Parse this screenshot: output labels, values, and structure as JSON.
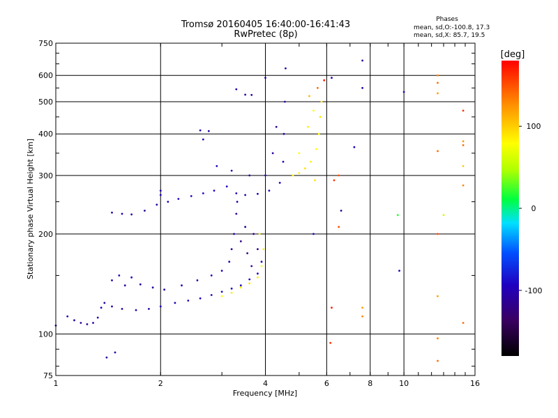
{
  "chart_data": {
    "type": "scatter",
    "title": "Tromsø 20160405 16:40:00-16:41:43",
    "subtitle": "RwPretec (8p)",
    "xlabel": "Frequency [MHz]",
    "ylabel": "Stationary phase Virtual Height [km]",
    "x_scale": "log",
    "y_scale": "log",
    "xlim": [
      1,
      16
    ],
    "ylim": [
      75,
      750
    ],
    "x_ticks": [
      1,
      2,
      4,
      6,
      8,
      10,
      16
    ],
    "x_tick_labels": [
      "1",
      "2",
      "4",
      "6",
      "8",
      "10",
      "16"
    ],
    "y_ticks": [
      75,
      100,
      200,
      300,
      400,
      500,
      600,
      750
    ],
    "y_tick_labels": [
      "75",
      "100",
      "200",
      "300",
      "400",
      "500",
      "600",
      "750"
    ],
    "grid": true,
    "phases_info": {
      "heading": "Phases",
      "line1": "mean, sd,O:-100.8, 17.3",
      "line2": "mean, sd,X:  85.7, 19.5"
    },
    "colorbar": {
      "unit": "[deg]",
      "range": [
        -180,
        180
      ],
      "tick_values": [
        100,
        0,
        -100
      ],
      "tick_labels": [
        "100",
        "0",
        "-100"
      ]
    },
    "series": [
      {
        "values": [
          {
            "x": 1.0,
            "y": 106,
            "p": -110
          },
          {
            "x": 1.08,
            "y": 113,
            "p": -105
          },
          {
            "x": 1.13,
            "y": 110,
            "p": -110
          },
          {
            "x": 1.18,
            "y": 108,
            "p": -112
          },
          {
            "x": 1.23,
            "y": 107,
            "p": -110
          },
          {
            "x": 1.28,
            "y": 108,
            "p": -105
          },
          {
            "x": 1.32,
            "y": 112,
            "p": -105
          },
          {
            "x": 1.35,
            "y": 120,
            "p": -100
          },
          {
            "x": 1.38,
            "y": 124,
            "p": -105
          },
          {
            "x": 1.45,
            "y": 121,
            "p": -110
          },
          {
            "x": 1.55,
            "y": 119,
            "p": -110
          },
          {
            "x": 1.7,
            "y": 118,
            "p": -105
          },
          {
            "x": 1.85,
            "y": 119,
            "p": -100
          },
          {
            "x": 2.0,
            "y": 121,
            "p": -100
          },
          {
            "x": 2.2,
            "y": 124,
            "p": -100
          },
          {
            "x": 2.4,
            "y": 126,
            "p": -95
          },
          {
            "x": 2.6,
            "y": 128,
            "p": -95
          },
          {
            "x": 2.8,
            "y": 131,
            "p": -95
          },
          {
            "x": 3.0,
            "y": 134,
            "p": -90
          },
          {
            "x": 3.2,
            "y": 137,
            "p": -90
          },
          {
            "x": 3.4,
            "y": 140,
            "p": -95
          },
          {
            "x": 3.6,
            "y": 146,
            "p": -95
          },
          {
            "x": 3.8,
            "y": 152,
            "p": -100
          },
          {
            "x": 1.45,
            "y": 145,
            "p": -105
          },
          {
            "x": 1.52,
            "y": 150,
            "p": -100
          },
          {
            "x": 1.58,
            "y": 140,
            "p": -110
          },
          {
            "x": 1.65,
            "y": 148,
            "p": -100
          },
          {
            "x": 1.75,
            "y": 141,
            "p": -110
          },
          {
            "x": 1.9,
            "y": 138,
            "p": -105
          },
          {
            "x": 2.05,
            "y": 136,
            "p": -105
          },
          {
            "x": 2.3,
            "y": 140,
            "p": -100
          },
          {
            "x": 2.55,
            "y": 145,
            "p": -100
          },
          {
            "x": 2.8,
            "y": 150,
            "p": -100
          },
          {
            "x": 3.0,
            "y": 155,
            "p": -100
          },
          {
            "x": 3.15,
            "y": 165,
            "p": -105
          },
          {
            "x": 3.2,
            "y": 180,
            "p": -110
          },
          {
            "x": 3.25,
            "y": 200,
            "p": -110
          },
          {
            "x": 3.3,
            "y": 230,
            "p": -115
          },
          {
            "x": 3.32,
            "y": 250,
            "p": -110
          },
          {
            "x": 3.4,
            "y": 190,
            "p": -120
          },
          {
            "x": 3.5,
            "y": 210,
            "p": -115
          },
          {
            "x": 3.55,
            "y": 175,
            "p": -120
          },
          {
            "x": 3.65,
            "y": 160,
            "p": -115
          },
          {
            "x": 3.7,
            "y": 200,
            "p": -120
          },
          {
            "x": 3.8,
            "y": 180,
            "p": -115
          },
          {
            "x": 3.9,
            "y": 165,
            "p": -110
          },
          {
            "x": 1.45,
            "y": 232,
            "p": -110
          },
          {
            "x": 1.55,
            "y": 230,
            "p": -105
          },
          {
            "x": 1.65,
            "y": 229,
            "p": -105
          },
          {
            "x": 1.8,
            "y": 235,
            "p": -110
          },
          {
            "x": 1.95,
            "y": 245,
            "p": -105
          },
          {
            "x": 2.0,
            "y": 262,
            "p": -100
          },
          {
            "x": 2.1,
            "y": 250,
            "p": -100
          },
          {
            "x": 2.25,
            "y": 255,
            "p": -95
          },
          {
            "x": 2.45,
            "y": 260,
            "p": -95
          },
          {
            "x": 2.65,
            "y": 265,
            "p": -95
          },
          {
            "x": 2.85,
            "y": 270,
            "p": -90
          },
          {
            "x": 3.1,
            "y": 278,
            "p": -95
          },
          {
            "x": 3.3,
            "y": 265,
            "p": -100
          },
          {
            "x": 3.5,
            "y": 262,
            "p": -105
          },
          {
            "x": 3.8,
            "y": 264,
            "p": -100
          },
          {
            "x": 4.1,
            "y": 270,
            "p": -95
          },
          {
            "x": 4.4,
            "y": 285,
            "p": -100
          },
          {
            "x": 4.5,
            "y": 330,
            "p": -105
          },
          {
            "x": 4.52,
            "y": 400,
            "p": -110
          },
          {
            "x": 4.55,
            "y": 500,
            "p": -110
          },
          {
            "x": 4.57,
            "y": 630,
            "p": -105
          },
          {
            "x": 2.9,
            "y": 320,
            "p": -100
          },
          {
            "x": 3.2,
            "y": 310,
            "p": -105
          },
          {
            "x": 3.6,
            "y": 300,
            "p": -110
          },
          {
            "x": 4.0,
            "y": 300,
            "p": -105
          },
          {
            "x": 4.2,
            "y": 350,
            "p": -110
          },
          {
            "x": 4.3,
            "y": 420,
            "p": -115
          },
          {
            "x": 3.5,
            "y": 525,
            "p": -110
          },
          {
            "x": 3.65,
            "y": 524,
            "p": -105
          },
          {
            "x": 3.3,
            "y": 545,
            "p": -105
          },
          {
            "x": 4.0,
            "y": 590,
            "p": -110
          },
          {
            "x": 2.6,
            "y": 410,
            "p": -100
          },
          {
            "x": 2.75,
            "y": 408,
            "p": -105
          },
          {
            "x": 2.65,
            "y": 385,
            "p": -100
          },
          {
            "x": 2.0,
            "y": 270,
            "p": -105
          },
          {
            "x": 1.4,
            "y": 85,
            "p": -110
          },
          {
            "x": 1.48,
            "y": 88,
            "p": -105
          },
          {
            "x": 4.8,
            "y": 300,
            "p": 80
          },
          {
            "x": 5.0,
            "y": 305,
            "p": 85
          },
          {
            "x": 5.2,
            "y": 315,
            "p": 90
          },
          {
            "x": 5.4,
            "y": 330,
            "p": 85
          },
          {
            "x": 5.6,
            "y": 360,
            "p": 80
          },
          {
            "x": 5.7,
            "y": 400,
            "p": 85
          },
          {
            "x": 5.75,
            "y": 450,
            "p": 90
          },
          {
            "x": 5.8,
            "y": 500,
            "p": 85
          },
          {
            "x": 5.0,
            "y": 350,
            "p": 80
          },
          {
            "x": 5.3,
            "y": 420,
            "p": 85
          },
          {
            "x": 5.5,
            "y": 470,
            "p": 80
          },
          {
            "x": 5.55,
            "y": 290,
            "p": 90
          },
          {
            "x": 3.0,
            "y": 130,
            "p": 80
          },
          {
            "x": 3.2,
            "y": 133,
            "p": 85
          },
          {
            "x": 3.4,
            "y": 138,
            "p": 85
          },
          {
            "x": 3.6,
            "y": 142,
            "p": 90
          },
          {
            "x": 3.8,
            "y": 148,
            "p": 85
          },
          {
            "x": 3.9,
            "y": 160,
            "p": 80
          },
          {
            "x": 3.95,
            "y": 180,
            "p": 85
          },
          {
            "x": 3.85,
            "y": 200,
            "p": 90
          },
          {
            "x": 5.35,
            "y": 520,
            "p": 110
          },
          {
            "x": 5.65,
            "y": 550,
            "p": 140
          },
          {
            "x": 6.2,
            "y": 590,
            "p": -100
          },
          {
            "x": 7.6,
            "y": 665,
            "p": -110
          },
          {
            "x": 7.6,
            "y": 550,
            "p": -105
          },
          {
            "x": 10.0,
            "y": 535,
            "p": -100
          },
          {
            "x": 7.2,
            "y": 365,
            "p": -100
          },
          {
            "x": 6.6,
            "y": 235,
            "p": -110
          },
          {
            "x": 6.5,
            "y": 210,
            "p": 150
          },
          {
            "x": 6.5,
            "y": 300,
            "p": 150
          },
          {
            "x": 6.3,
            "y": 290,
            "p": 160
          },
          {
            "x": 6.2,
            "y": 120,
            "p": 170
          },
          {
            "x": 6.15,
            "y": 94,
            "p": 160
          },
          {
            "x": 7.6,
            "y": 120,
            "p": 120
          },
          {
            "x": 7.6,
            "y": 113,
            "p": 130
          },
          {
            "x": 9.6,
            "y": 228,
            "p": 20
          },
          {
            "x": 9.7,
            "y": 155,
            "p": -100
          },
          {
            "x": 12.5,
            "y": 600,
            "p": 130
          },
          {
            "x": 12.5,
            "y": 570,
            "p": 140
          },
          {
            "x": 12.5,
            "y": 530,
            "p": 120
          },
          {
            "x": 12.5,
            "y": 355,
            "p": 140
          },
          {
            "x": 12.5,
            "y": 200,
            "p": 150
          },
          {
            "x": 12.5,
            "y": 130,
            "p": 120
          },
          {
            "x": 12.5,
            "y": 97,
            "p": 130
          },
          {
            "x": 12.5,
            "y": 83,
            "p": 140
          },
          {
            "x": 13.0,
            "y": 228,
            "p": 60
          },
          {
            "x": 14.8,
            "y": 470,
            "p": 160
          },
          {
            "x": 14.8,
            "y": 380,
            "p": 120
          },
          {
            "x": 14.8,
            "y": 370,
            "p": 140
          },
          {
            "x": 14.8,
            "y": 320,
            "p": 100
          },
          {
            "x": 14.8,
            "y": 280,
            "p": 130
          },
          {
            "x": 14.8,
            "y": 108,
            "p": 140
          },
          {
            "x": 5.5,
            "y": 200,
            "p": -100
          },
          {
            "x": 5.9,
            "y": 580,
            "p": 170
          }
        ]
      }
    ]
  }
}
